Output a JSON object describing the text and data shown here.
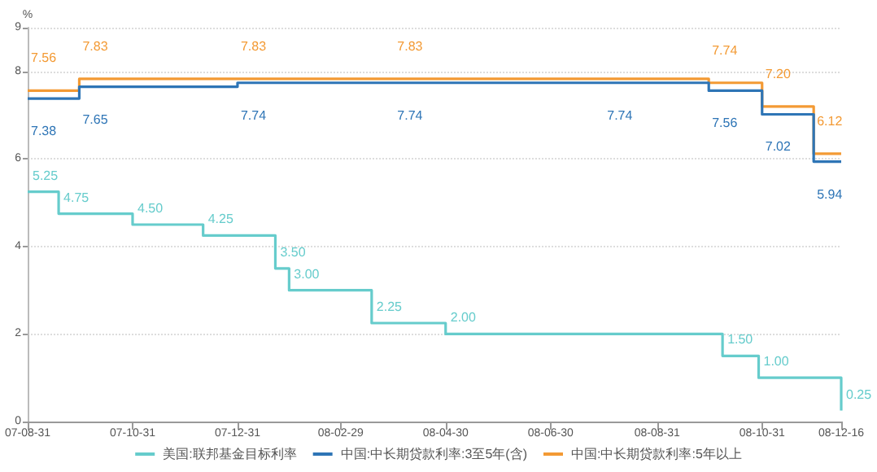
{
  "chart_data": {
    "type": "step",
    "ylabel": "%",
    "ylim": [
      0,
      9
    ],
    "yticks": [
      0,
      2,
      4,
      6,
      8,
      9
    ],
    "xlim": [
      "2007-08-31",
      "2008-12-16"
    ],
    "xticks": [
      {
        "value": "2007-08-31",
        "label": "07-08-31"
      },
      {
        "value": "2007-10-31",
        "label": "07-10-31"
      },
      {
        "value": "2007-12-31",
        "label": "07-12-31"
      },
      {
        "value": "2008-02-29",
        "label": "08-02-29"
      },
      {
        "value": "2008-04-30",
        "label": "08-04-30"
      },
      {
        "value": "2008-06-30",
        "label": "08-06-30"
      },
      {
        "value": "2008-08-31",
        "label": "08-08-31"
      },
      {
        "value": "2008-10-31",
        "label": "08-10-31"
      },
      {
        "value": "2008-12-16",
        "label": "08-12-16"
      }
    ],
    "grid": "y",
    "legend": "bottom",
    "marker": "none",
    "line_style": "solid",
    "series": [
      {
        "name": "美国:联邦基金目标利率",
        "color": "#66cccc",
        "x": [
          "2007-08-31",
          "2007-09-18",
          "2007-10-31",
          "2007-12-11",
          "2008-01-22",
          "2008-01-30",
          "2008-03-18",
          "2008-04-30",
          "2008-10-08",
          "2008-10-29",
          "2008-12-16"
        ],
        "values": [
          5.25,
          4.75,
          4.5,
          4.25,
          3.5,
          3.0,
          2.25,
          2.0,
          1.5,
          1.0,
          0.25
        ],
        "value_labels": [
          "5.25",
          "4.75",
          "4.50",
          "4.25",
          "3.50",
          "3.00",
          "2.25",
          "2.00",
          "1.50",
          "1.00",
          "0.25"
        ]
      },
      {
        "name": "中国:中长期贷款利率:3至5年(含)",
        "color": "#2e75b6",
        "x": [
          "2007-08-31",
          "2007-09-30",
          "2007-12-31",
          "2008-03-31",
          "2008-07-31",
          "2008-09-30",
          "2008-10-31",
          "2008-11-30",
          "2008-12-16"
        ],
        "values": [
          7.38,
          7.65,
          7.74,
          7.74,
          7.74,
          7.56,
          7.02,
          5.94,
          5.94
        ],
        "value_labels": [
          "7.38",
          "7.65",
          "7.74",
          "7.74",
          "7.74",
          "7.56",
          "7.02",
          "5.94",
          null
        ]
      },
      {
        "name": "中国:中长期贷款利率:5年以上",
        "color": "#f39a34",
        "x": [
          "2007-08-31",
          "2007-09-30",
          "2007-12-31",
          "2008-03-31",
          "2008-09-30",
          "2008-10-31",
          "2008-11-30",
          "2008-12-16"
        ],
        "values": [
          7.56,
          7.83,
          7.83,
          7.83,
          7.74,
          7.2,
          6.12,
          6.12
        ],
        "value_labels": [
          "7.56",
          "7.83",
          "7.83",
          "7.83",
          "7.74",
          "7.20",
          "6.12",
          null
        ]
      }
    ]
  }
}
